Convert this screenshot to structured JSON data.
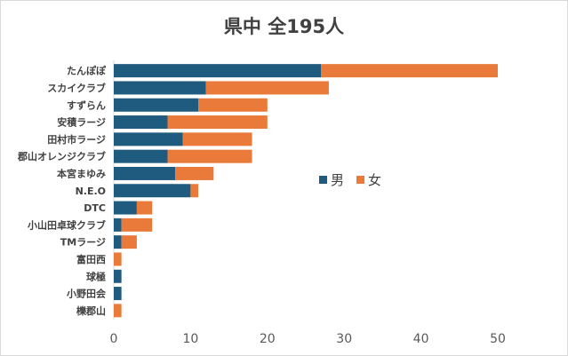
{
  "chart_data": {
    "type": "bar",
    "orientation": "horizontal",
    "stacked": true,
    "title": "県中 全195人",
    "categories": [
      "たんぽぽ",
      "スカイクラブ",
      "すずらん",
      "安積ラージ",
      "田村市ラージ",
      "郡山オレンジクラブ",
      "本宮まゆみ",
      "N.E.O",
      "DTC",
      "小山田卓球クラブ",
      "TMラージ",
      "富田西",
      "球極",
      "小野田会",
      "櫟郡山"
    ],
    "series": [
      {
        "name": "男",
        "color": "#1f5b7e",
        "values": [
          27,
          12,
          11,
          7,
          9,
          7,
          8,
          10,
          3,
          1,
          1,
          0,
          1,
          1,
          0
        ]
      },
      {
        "name": "女",
        "color": "#ea7a3a",
        "values": [
          23,
          16,
          9,
          13,
          9,
          11,
          5,
          1,
          2,
          4,
          2,
          1,
          0,
          0,
          1
        ]
      }
    ],
    "xlim": [
      0,
      50
    ],
    "xticks": [
      "0",
      "10",
      "20",
      "30",
      "40",
      "50"
    ],
    "grid": false,
    "legend": "right-middle"
  }
}
